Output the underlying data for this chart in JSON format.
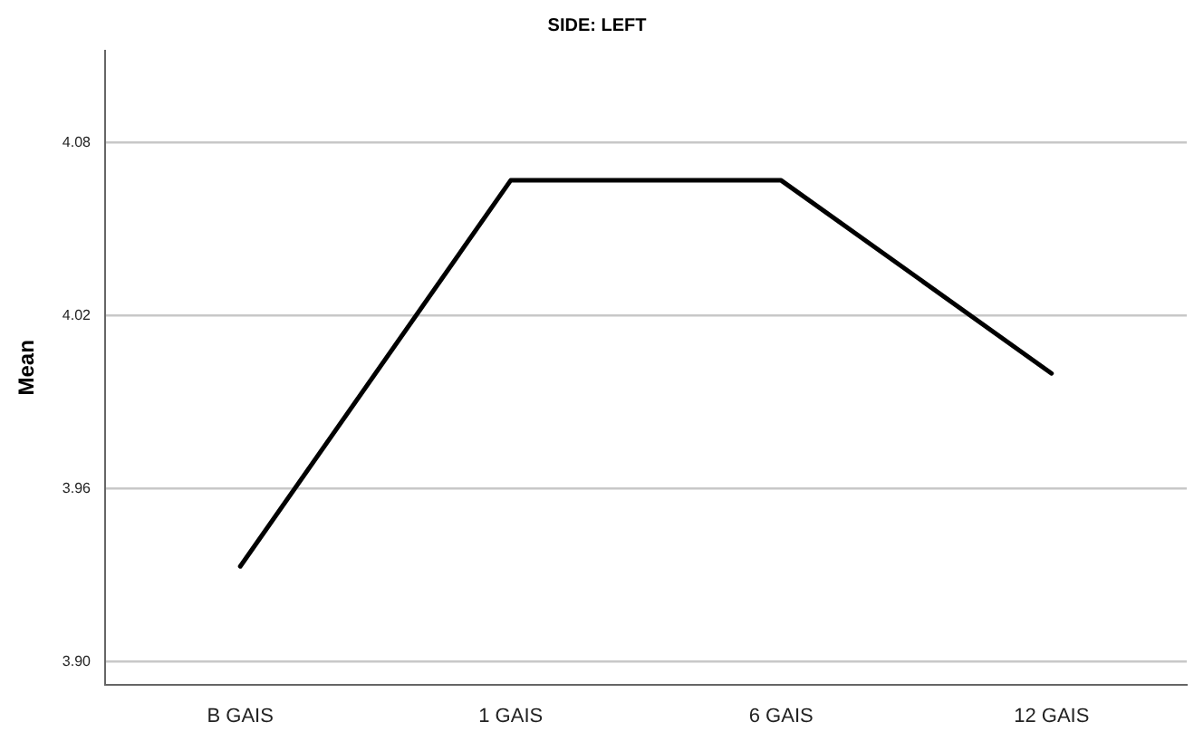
{
  "chart_data": {
    "type": "line",
    "title": "SIDE: LEFT",
    "ylabel": "Mean",
    "categories": [
      "B GAIS",
      "1 GAIS",
      "6 GAIS",
      "12 GAIS"
    ],
    "series": [
      {
        "color": "#000000",
        "values": [
          3.933,
          4.067,
          4.067,
          4.0
        ]
      }
    ],
    "ylim": [
      3.892,
      4.112
    ],
    "yticks": [
      {
        "value": 3.9,
        "label": "3.90"
      },
      {
        "value": 3.96,
        "label": "3.96"
      },
      {
        "value": 4.02,
        "label": "4.02"
      },
      {
        "value": 4.08,
        "label": "4.08"
      }
    ],
    "grid": "y",
    "legend": false,
    "marker": "none",
    "line_style": "solid"
  }
}
